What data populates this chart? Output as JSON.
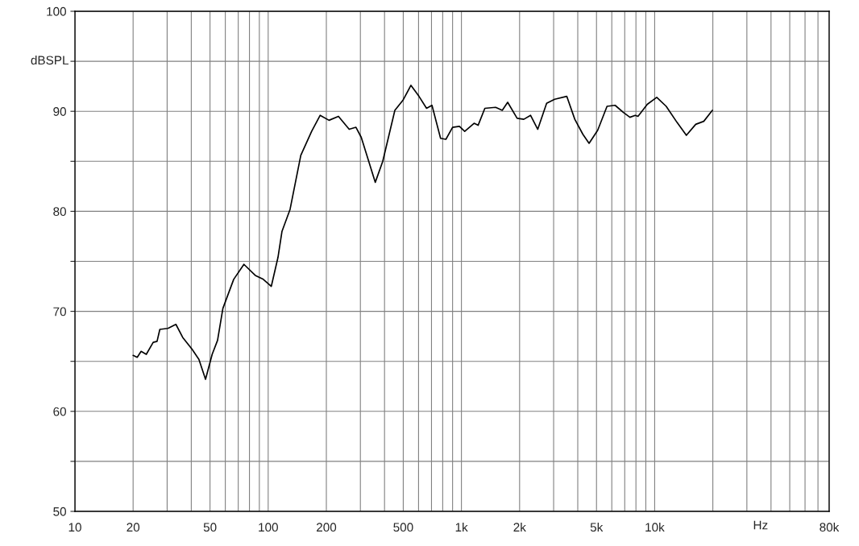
{
  "chart_data": {
    "type": "line",
    "xlabel": "Hz",
    "ylabel": "dBSPL",
    "log": "x",
    "grid": true,
    "marker": "none",
    "line_style": "solid",
    "xlim": [
      10,
      80000
    ],
    "ylim": [
      50,
      100
    ],
    "xticks": [
      {
        "value": 10,
        "label": "10"
      },
      {
        "value": 20,
        "label": "20"
      },
      {
        "value": 30,
        "label": null
      },
      {
        "value": 40,
        "label": null
      },
      {
        "value": 50,
        "label": "50"
      },
      {
        "value": 60,
        "label": null
      },
      {
        "value": 70,
        "label": null
      },
      {
        "value": 80,
        "label": null
      },
      {
        "value": 90,
        "label": null
      },
      {
        "value": 100,
        "label": "100"
      },
      {
        "value": 200,
        "label": "200"
      },
      {
        "value": 300,
        "label": null
      },
      {
        "value": 400,
        "label": null
      },
      {
        "value": 500,
        "label": "500"
      },
      {
        "value": 600,
        "label": null
      },
      {
        "value": 700,
        "label": null
      },
      {
        "value": 800,
        "label": null
      },
      {
        "value": 900,
        "label": null
      },
      {
        "value": 1000,
        "label": "1k"
      },
      {
        "value": 2000,
        "label": "2k"
      },
      {
        "value": 3000,
        "label": null
      },
      {
        "value": 4000,
        "label": null
      },
      {
        "value": 5000,
        "label": "5k"
      },
      {
        "value": 6000,
        "label": null
      },
      {
        "value": 7000,
        "label": null
      },
      {
        "value": 8000,
        "label": null
      },
      {
        "value": 9000,
        "label": null
      },
      {
        "value": 10000,
        "label": "10k"
      },
      {
        "value": 20000,
        "label": null
      },
      {
        "value": 30000,
        "label": null
      },
      {
        "value": 40000,
        "label": null
      },
      {
        "value": 50000,
        "label": null
      },
      {
        "value": 60000,
        "label": null
      },
      {
        "value": 70000,
        "label": null
      },
      {
        "value": 80000,
        "label": "80k"
      }
    ],
    "yticks": [
      50,
      {
        "value": 55,
        "label": null
      },
      60,
      {
        "value": 65,
        "label": null
      },
      70,
      {
        "value": 75,
        "label": null
      },
      80,
      {
        "value": 85,
        "label": null
      },
      90,
      {
        "value": 95,
        "label": null
      },
      100
    ],
    "series": [
      {
        "color": "#000000",
        "x": [
          20,
          21,
          22,
          23.4,
          25.4,
          26.6,
          27.5,
          30.3,
          33.3,
          36.1,
          40.4,
          43.8,
          47.4,
          51.3,
          54.7,
          58.3,
          66.3,
          74.9,
          85.7,
          94.3,
          103.8,
          112.4,
          117.9,
          129.8,
          147.5,
          167.8,
          185.8,
          206.4,
          231,
          262.5,
          284.6,
          303.1,
          358.3,
          391.7,
          452.4,
          498,
          548,
          603,
          660,
          704,
          780,
          831,
          900,
          976,
          1040,
          1163,
          1220,
          1322,
          1503,
          1627,
          1735,
          1942,
          2103,
          2278,
          2483,
          2760,
          3038,
          3508,
          3861,
          4251,
          4577,
          5072,
          5669,
          6241,
          6869,
          7447,
          7935,
          8198,
          9162,
          10250,
          11470,
          13040,
          14590,
          16310,
          17950,
          19890
        ],
        "values": [
          65.6,
          65.4,
          66.0,
          65.7,
          66.9,
          67.0,
          68.2,
          68.3,
          68.7,
          67.4,
          66.2,
          65.2,
          63.2,
          65.7,
          67.1,
          70.3,
          73.2,
          74.7,
          73.6,
          73.2,
          72.5,
          75.4,
          78.0,
          80.2,
          85.6,
          88.0,
          89.6,
          89.1,
          89.5,
          88.2,
          88.4,
          87.4,
          82.9,
          85.0,
          90.1,
          91.1,
          92.6,
          91.5,
          90.3,
          90.6,
          87.3,
          87.2,
          88.4,
          88.5,
          88.0,
          88.8,
          88.6,
          90.3,
          90.4,
          90.1,
          90.9,
          89.3,
          89.2,
          89.6,
          88.2,
          90.8,
          91.2,
          91.5,
          89.2,
          87.7,
          86.8,
          88.1,
          90.5,
          90.6,
          89.9,
          89.4,
          89.6,
          89.5,
          90.7,
          91.4,
          90.5,
          88.9,
          87.6,
          88.7,
          89.0,
          90.1
        ]
      }
    ]
  }
}
